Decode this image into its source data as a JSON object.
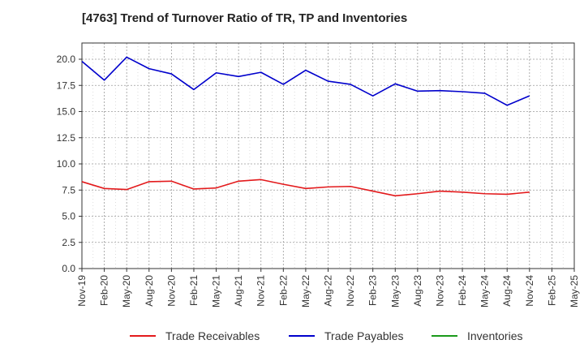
{
  "chart_data": {
    "type": "line",
    "title": "[4763]  Trend of Turnover Ratio of TR, TP and Inventories",
    "xlabel": "",
    "ylabel": "",
    "categories": [
      "Nov-19",
      "Feb-20",
      "May-20",
      "Aug-20",
      "Nov-20",
      "Feb-21",
      "May-21",
      "Aug-21",
      "Nov-21",
      "Feb-22",
      "May-22",
      "Aug-22",
      "Nov-22",
      "Feb-23",
      "May-23",
      "Aug-23",
      "Nov-23",
      "Feb-24",
      "May-24",
      "Aug-24",
      "Nov-24",
      "Feb-25",
      "May-25"
    ],
    "ylim": [
      0,
      20.0
    ],
    "yticks": [
      "0.0",
      "2.5",
      "5.0",
      "7.5",
      "10.0",
      "12.5",
      "15.0",
      "17.5",
      "20.0"
    ],
    "grid": true,
    "legend_position": "bottom",
    "series": [
      {
        "name": "Trade Receivables",
        "color": "#e31a1c",
        "values": [
          8.3,
          7.65,
          7.55,
          8.3,
          8.35,
          7.6,
          7.7,
          8.35,
          8.5,
          8.05,
          7.65,
          7.8,
          7.85,
          7.4,
          6.95,
          7.15,
          7.4,
          7.3,
          7.15,
          7.1,
          7.3,
          null,
          null
        ]
      },
      {
        "name": "Trade Payables",
        "color": "#0000cc",
        "values": [
          19.8,
          18.0,
          20.2,
          19.1,
          18.6,
          17.1,
          18.7,
          18.35,
          18.75,
          17.6,
          18.95,
          17.9,
          17.6,
          16.5,
          17.65,
          16.95,
          17.0,
          16.9,
          16.75,
          15.6,
          16.5,
          null,
          null
        ]
      },
      {
        "name": "Inventories",
        "color": "#1a9a1a",
        "values": [
          null,
          null,
          null,
          null,
          null,
          null,
          null,
          null,
          null,
          null,
          null,
          null,
          null,
          null,
          null,
          null,
          null,
          null,
          null,
          null,
          null,
          null,
          null
        ]
      }
    ]
  }
}
